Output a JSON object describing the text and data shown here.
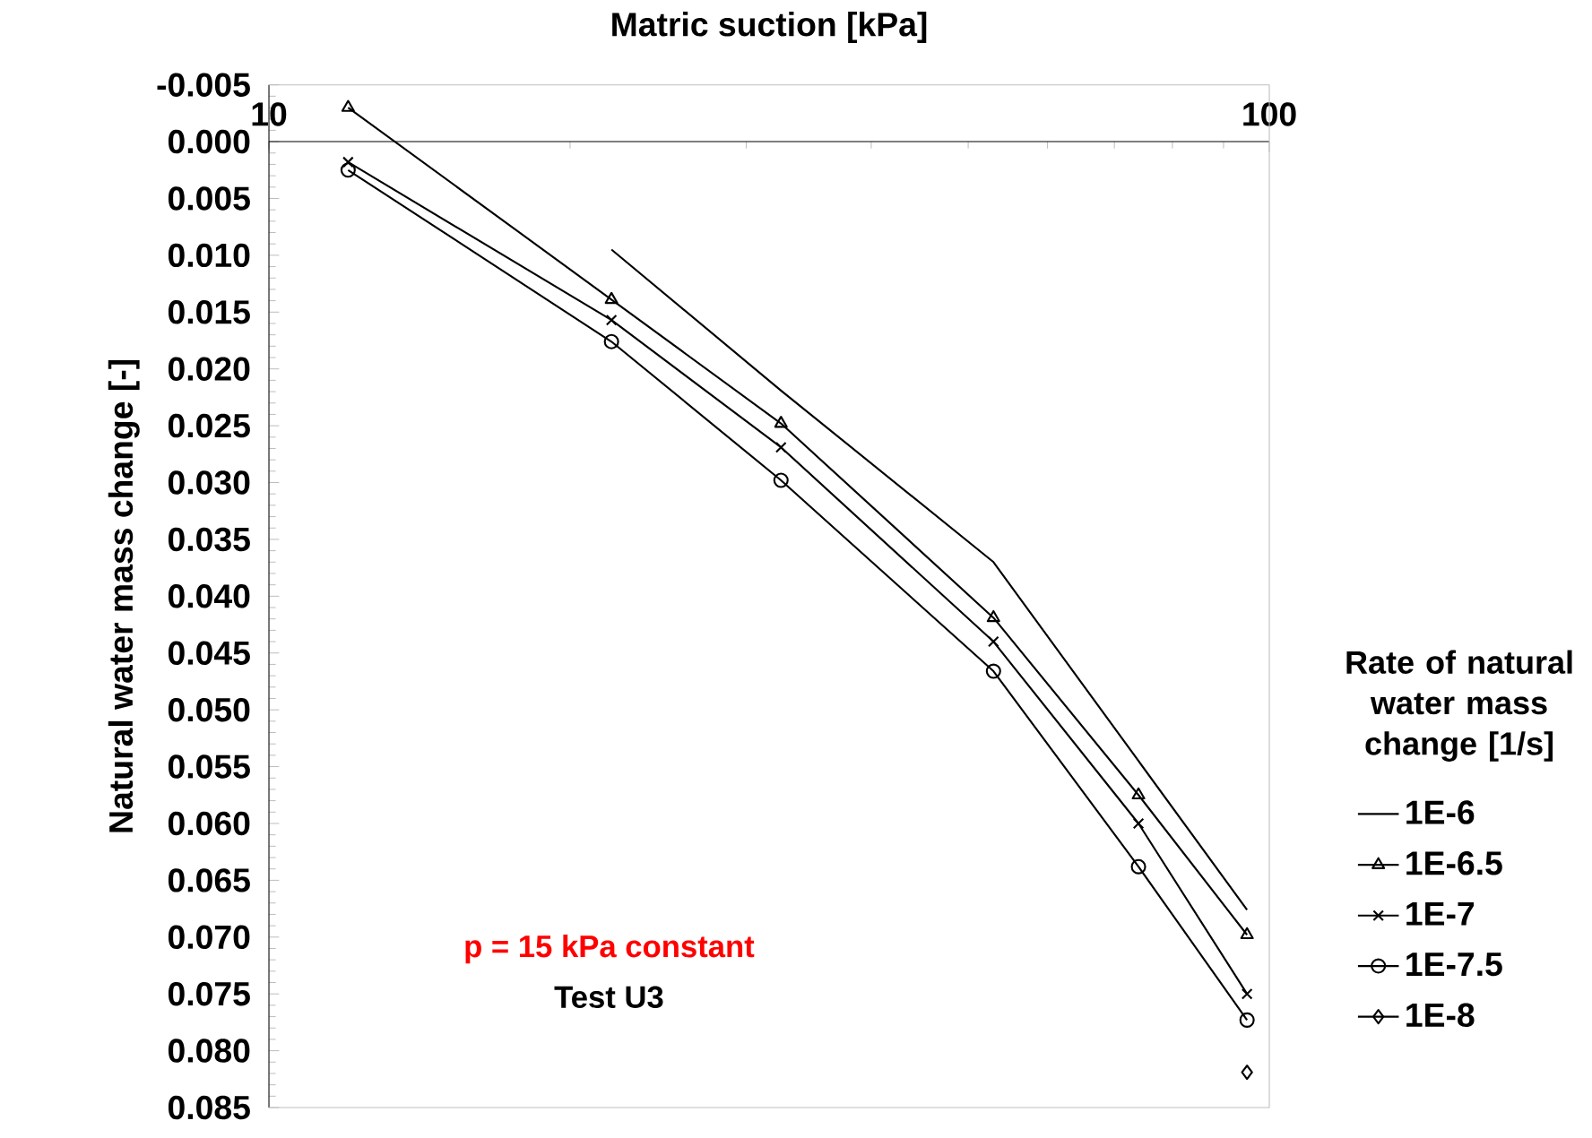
{
  "chart_data": {
    "type": "line",
    "xlabel": "Matric suction [kPa]",
    "ylabel": "Natural water mass change [-]",
    "legend_title": "Rate of natural water mass change [1/s]",
    "annotations": [
      "p = 15 kPa constant",
      "Test U3"
    ],
    "x": [
      12,
      22,
      32.5,
      53,
      74,
      95
    ],
    "log": "x",
    "xlim": [
      10,
      100
    ],
    "xticks": [
      10,
      100
    ],
    "ylim": [
      0.085,
      -0.005
    ],
    "yticks": [
      {
        "value": -0.005,
        "label": "-0.005"
      },
      {
        "value": 0,
        "label": "0.000"
      },
      {
        "value": 0.005,
        "label": "0.005"
      },
      {
        "value": 0.01,
        "label": "0.010"
      },
      {
        "value": 0.015,
        "label": "0.015"
      },
      {
        "value": 0.02,
        "label": "0.020"
      },
      {
        "value": 0.025,
        "label": "0.025"
      },
      {
        "value": 0.03,
        "label": "0.030"
      },
      {
        "value": 0.035,
        "label": "0.035"
      },
      {
        "value": 0.04,
        "label": "0.040"
      },
      {
        "value": 0.045,
        "label": "0.045"
      },
      {
        "value": 0.05,
        "label": "0.050"
      },
      {
        "value": 0.055,
        "label": "0.055"
      },
      {
        "value": 0.06,
        "label": "0.060"
      },
      {
        "value": 0.065,
        "label": "0.065"
      },
      {
        "value": 0.07,
        "label": "0.070"
      },
      {
        "value": 0.075,
        "label": "0.075"
      },
      {
        "value": 0.08,
        "label": "0.080"
      },
      {
        "value": 0.085,
        "label": "0.085"
      }
    ],
    "legend": "right",
    "series": [
      {
        "name": "1E-6",
        "color": "#000000",
        "marker": "none",
        "values": [
          null,
          0.0095,
          0.0219,
          0.037,
          0.0545,
          0.0676
        ]
      },
      {
        "name": "1E-6.5",
        "color": "#000000",
        "marker": "triangle",
        "values": [
          -0.003,
          0.0139,
          0.0248,
          0.0419,
          0.0575,
          0.0698
        ]
      },
      {
        "name": "1E-7",
        "color": "#000000",
        "marker": "cross",
        "values": [
          0.0018,
          0.0157,
          0.0269,
          0.044,
          0.06,
          0.075
        ]
      },
      {
        "name": "1E-7.5",
        "color": "#000000",
        "marker": "circle",
        "values": [
          0.0025,
          0.0176,
          0.0298,
          0.0466,
          0.0638,
          0.0773
        ]
      },
      {
        "name": "1E-8",
        "color": "#000000",
        "marker": "diamond",
        "values": [
          null,
          null,
          null,
          null,
          null,
          0.0819
        ]
      }
    ]
  }
}
